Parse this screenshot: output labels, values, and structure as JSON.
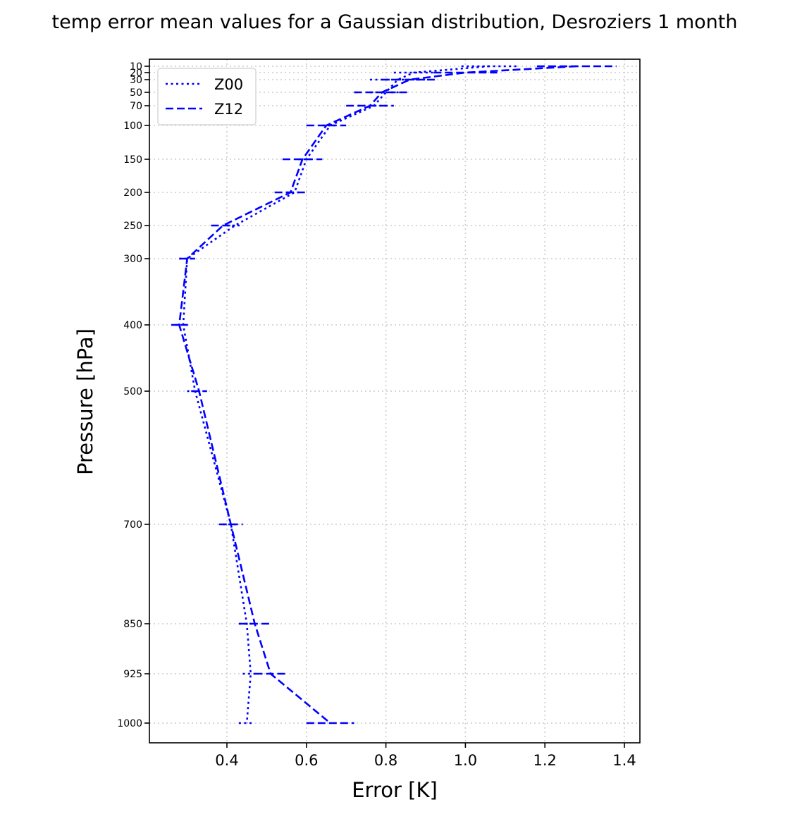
{
  "chart_data": {
    "type": "line",
    "title": "temp error mean values for a Gaussian distribution, Desroziers 1 month",
    "xlabel": "Error [K]",
    "ylabel": "Pressure [hPa]",
    "xlim": [
      0.2,
      1.44
    ],
    "ylim": [
      1050,
      10
    ],
    "y_scale": "nonlinear (descending pressure)",
    "x_ticks": [
      0.4,
      0.6,
      0.8,
      1.0,
      1.2,
      1.4
    ],
    "x_tick_labels": [
      "0.4",
      "0.6",
      "0.8",
      "1.0",
      "1.2",
      "1.4"
    ],
    "y_ticks": [
      10,
      20,
      30,
      50,
      70,
      100,
      150,
      200,
      250,
      300,
      400,
      500,
      700,
      850,
      925,
      1000
    ],
    "y_tick_labels": [
      "10",
      "20",
      "30",
      "50",
      "70",
      "100",
      "150",
      "200",
      "250",
      "300",
      "400",
      "500",
      "700",
      "850",
      "925",
      "1000"
    ],
    "grid": true,
    "legend_position": "upper-left",
    "color": "#0000ff",
    "series": [
      {
        "name": "Z00",
        "style": "dotted",
        "pressure": [
          10,
          20,
          30,
          50,
          70,
          100,
          150,
          200,
          250,
          300,
          400,
          500,
          700,
          850,
          925,
          1000
        ],
        "error": [
          1.06,
          0.87,
          0.83,
          0.8,
          0.77,
          0.66,
          0.6,
          0.57,
          0.42,
          0.3,
          0.29,
          0.32,
          0.41,
          0.45,
          0.46,
          0.45
        ],
        "error_bar": [
          0.07,
          0.05,
          0.07,
          0.04,
          0.04,
          0.02,
          0.02,
          0.02,
          0.02,
          0.02,
          0.02,
          0.02,
          0.02,
          0.02,
          0.02,
          0.02
        ]
      },
      {
        "name": "Z12",
        "style": "dashed",
        "pressure": [
          10,
          20,
          30,
          50,
          70,
          100,
          150,
          200,
          250,
          300,
          400,
          500,
          700,
          850,
          925,
          1000
        ],
        "error": [
          1.28,
          1.0,
          0.86,
          0.79,
          0.76,
          0.65,
          0.59,
          0.56,
          0.39,
          0.3,
          0.28,
          0.33,
          0.41,
          0.47,
          0.51,
          0.66
        ],
        "error_bar": [
          0.1,
          0.08,
          0.07,
          0.07,
          0.06,
          0.05,
          0.05,
          0.04,
          0.03,
          0.02,
          0.02,
          0.02,
          0.03,
          0.04,
          0.04,
          0.06
        ]
      }
    ]
  }
}
